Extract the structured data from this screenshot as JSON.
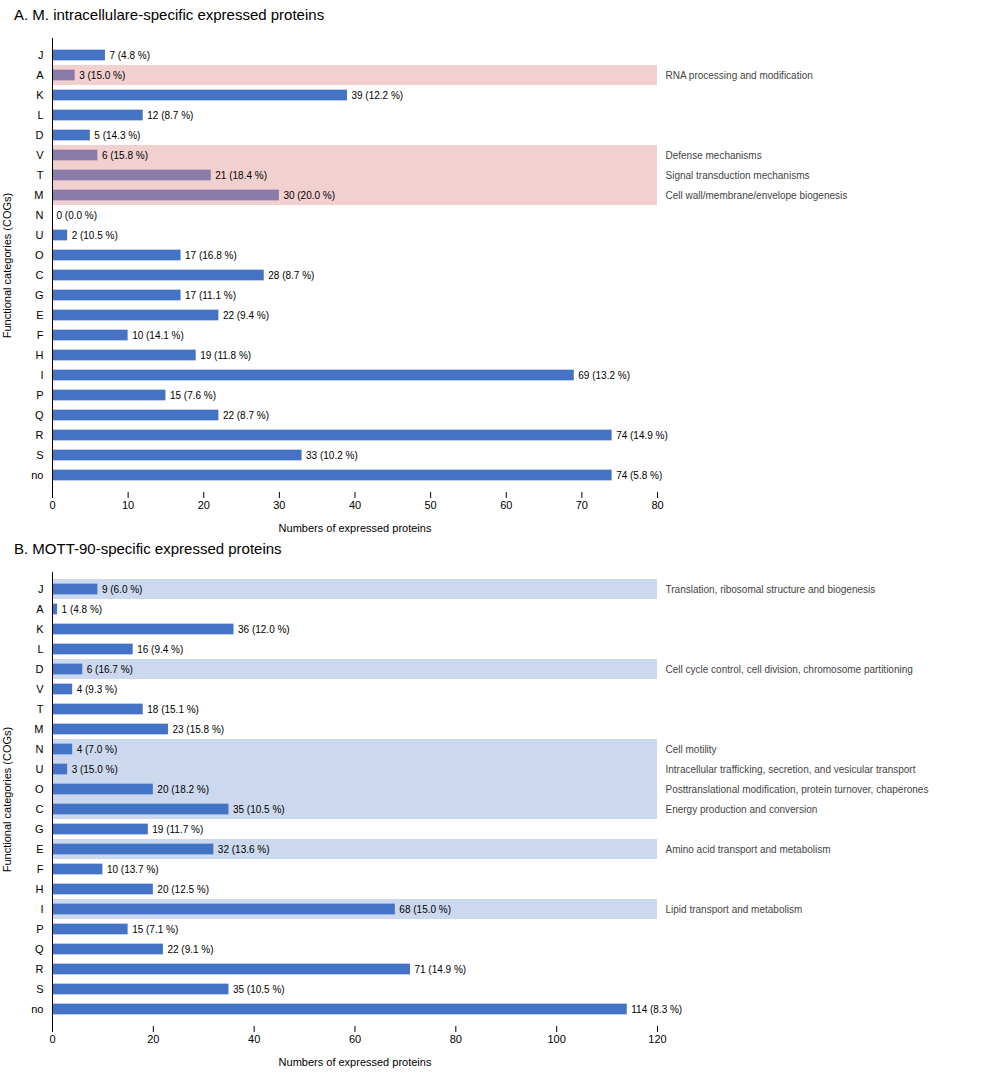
{
  "chart_data": [
    {
      "type": "bar",
      "orientation": "horizontal",
      "data_labels": true,
      "title": "A. M. intracellulare-specific expressed proteins",
      "xlabel": "Numbers of expressed proteins",
      "ylabel": "Functional categories (COGs)",
      "categories": [
        "J",
        "A",
        "K",
        "L",
        "D",
        "V",
        "T",
        "M",
        "N",
        "U",
        "O",
        "C",
        "G",
        "E",
        "F",
        "H",
        "I",
        "P",
        "Q",
        "R",
        "S",
        "no"
      ],
      "values": [
        7,
        3,
        39,
        12,
        5,
        6,
        21,
        30,
        0,
        2,
        17,
        28,
        17,
        22,
        10,
        19,
        69,
        15,
        22,
        74,
        33,
        74
      ],
      "value_labels": [
        "7 (4.8 %)",
        "3 (15.0 %)",
        "39 (12.2 %)",
        "12 (8.7 %)",
        "5 (14.3 %)",
        "6 (15.8 %)",
        "21 (18.4 %)",
        "30 (20.0 %)",
        "0 (0.0 %)",
        "2 (10.5 %)",
        "17 (16.8 %)",
        "28 (8.7 %)",
        "17 (11.1 %)",
        "22 (9.4 %)",
        "10 (14.1 %)",
        "19 (11.8 %)",
        "69 (13.2 %)",
        "15 (7.6 %)",
        "22 (8.7 %)",
        "74 (14.9 %)",
        "33 (10.2 %)",
        "74 (5.8 %)"
      ],
      "colors": [
        "#4472c4",
        "#8b7ba8",
        "#4472c4",
        "#4472c4",
        "#4472c4",
        "#8b7ba8",
        "#8b7ba8",
        "#8b7ba8",
        "#4472c4",
        "#4472c4",
        "#4472c4",
        "#4472c4",
        "#4472c4",
        "#4472c4",
        "#4472c4",
        "#4472c4",
        "#4472c4",
        "#4472c4",
        "#4472c4",
        "#4472c4",
        "#4472c4",
        "#4472c4"
      ],
      "annotations": [
        {
          "category": "A",
          "text": "RNA processing and modification",
          "color": "#f2d0d0"
        },
        {
          "category": "V",
          "text": "Defense mechanisms",
          "color": "#f2d0d0"
        },
        {
          "category": "T",
          "text": "Signal transduction mechanisms",
          "color": "#f2d0d0"
        },
        {
          "category": "M",
          "text": "Cell wall/membrane/envelope biogenesis",
          "color": "#f2d0d0"
        }
      ],
      "xlim": [
        0,
        80
      ],
      "xticks": [
        0,
        10,
        20,
        30,
        40,
        50,
        60,
        70,
        80
      ]
    },
    {
      "type": "bar",
      "orientation": "horizontal",
      "data_labels": true,
      "title": "B. MOTT-90-specific expressed proteins",
      "xlabel": "Numbers of expressed proteins",
      "ylabel": "Functional categories (COGs)",
      "categories": [
        "J",
        "A",
        "K",
        "L",
        "D",
        "V",
        "T",
        "M",
        "N",
        "U",
        "O",
        "C",
        "G",
        "E",
        "F",
        "H",
        "I",
        "P",
        "Q",
        "R",
        "S",
        "no"
      ],
      "values": [
        9,
        1,
        36,
        16,
        6,
        4,
        18,
        23,
        4,
        3,
        20,
        35,
        19,
        32,
        10,
        20,
        68,
        15,
        22,
        71,
        35,
        114
      ],
      "value_labels": [
        "9 (6.0 %)",
        "1 (4.8 %)",
        "36 (12.0 %)",
        "16 (9.4 %)",
        "6 (16.7 %)",
        "4 (9.3 %)",
        "18 (15.1 %)",
        "23 (15.8 %)",
        "4 (7.0 %)",
        "3 (15.0 %)",
        "20 (18.2 %)",
        "35 (10.5 %)",
        "19 (11.7 %)",
        "32 (13.6 %)",
        "10 (13.7 %)",
        "20 (12.5 %)",
        "68 (15.0 %)",
        "15 (7.1 %)",
        "22 (9.1 %)",
        "71 (14.9 %)",
        "35 (10.5 %)",
        "114 (8.3 %)"
      ],
      "color": "#4472c4",
      "annotations": [
        {
          "category": "J",
          "text": "Translation, ribosomal structure and biogenesis",
          "color": "#ccd8ee"
        },
        {
          "category": "D",
          "text": "Cell cycle control, cell division, chromosome partitioning",
          "color": "#ccd8ee"
        },
        {
          "category": "N",
          "text": "Cell motility",
          "color": "#ccd8ee"
        },
        {
          "category": "U",
          "text": "Intracellular trafficking, secretion, and vesicular transport",
          "color": "#ccd8ee"
        },
        {
          "category": "O",
          "text": "Posttranslational modification, protein turnover, chaperones",
          "color": "#ccd8ee"
        },
        {
          "category": "C",
          "text": "Energy production and conversion",
          "color": "#ccd8ee"
        },
        {
          "category": "E",
          "text": "Amino acid transport and metabolism",
          "color": "#ccd8ee"
        },
        {
          "category": "I",
          "text": "Lipid transport and metabolism",
          "color": "#ccd8ee"
        }
      ],
      "xlim": [
        0,
        120
      ],
      "xticks": [
        0,
        20,
        40,
        60,
        80,
        100,
        120
      ]
    }
  ]
}
